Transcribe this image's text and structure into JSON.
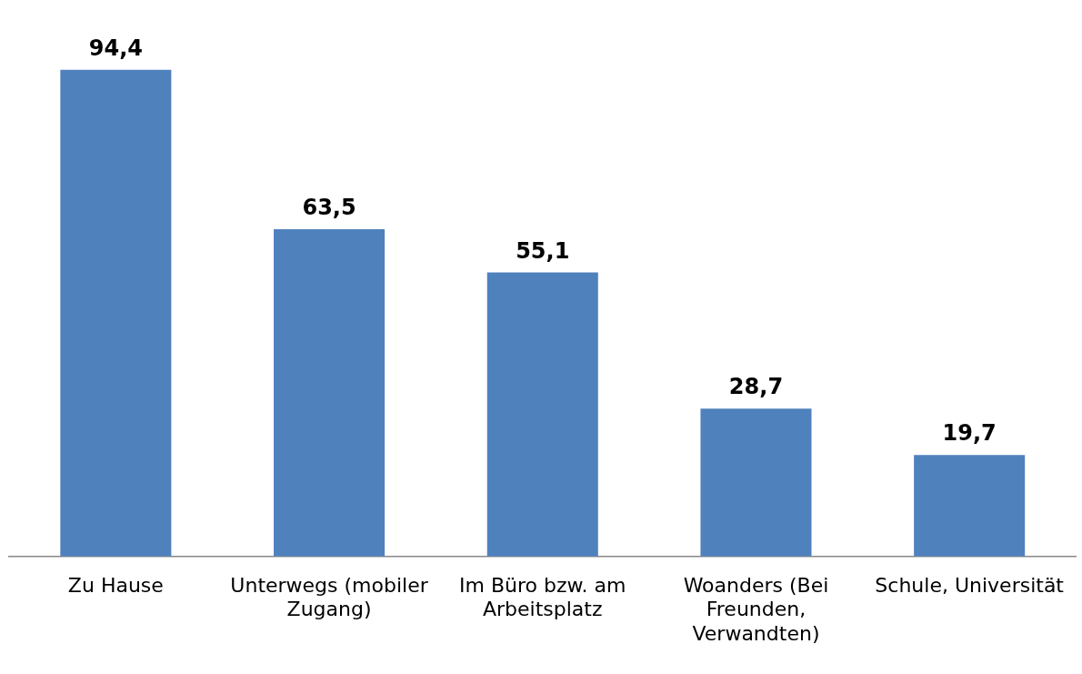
{
  "chart_data": {
    "type": "bar",
    "categories": [
      "Zu Hause",
      "Unterwegs (mobiler Zugang)",
      "Im Büro bzw. am Arbeitsplatz",
      "Woanders (Bei Freunden, Verwandten)",
      "Schule, Universität"
    ],
    "values": [
      94.4,
      63.5,
      55.1,
      28.7,
      19.7
    ],
    "value_labels": [
      "94,4",
      "63,5",
      "55,1",
      "28,7",
      "19,7"
    ],
    "color": "#4f81bd",
    "grid": false,
    "legend": false
  }
}
